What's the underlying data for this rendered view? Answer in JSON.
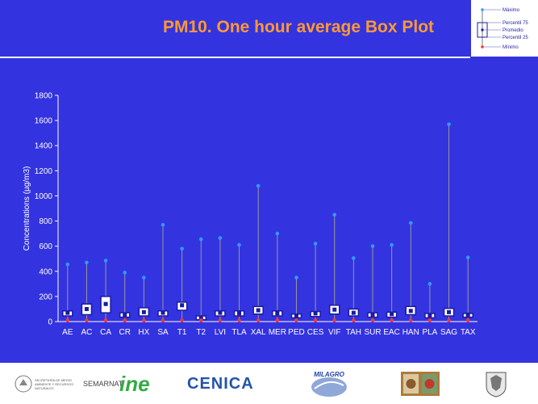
{
  "title": "PM10. One hour average Box Plot",
  "legend": {
    "max": "Máximo",
    "p75": "Percentil 75",
    "mean": "Promedio",
    "p25": "Percentil 25",
    "min": "Mínimo"
  },
  "footer": {
    "semarnat": "SEMARNAT",
    "semarnat_sub": "SECRETARÍA DE MEDIO AMBIENTE Y RECURSOS NATURALES",
    "ine": "ine",
    "cenica": "CENICA",
    "milagro": "MILAGRO"
  },
  "colors": {
    "background": "#3333e0",
    "title": "#ff9933",
    "box": "#1a1aa0",
    "max": "#3399ff",
    "min": "#ff3333",
    "whisker": "#999999"
  },
  "chart_data": {
    "type": "box",
    "ylabel": "Concentrations (µg/m3)",
    "ylim": [
      0,
      1800
    ],
    "yticks": [
      0,
      200,
      400,
      600,
      800,
      1000,
      1200,
      1400,
      1600,
      1800
    ],
    "categories": [
      "AE",
      "AC",
      "CA",
      "CR",
      "HX",
      "SA",
      "T1",
      "T2",
      "LVI",
      "TLA",
      "XAL",
      "MER",
      "PED",
      "CES",
      "VIF",
      "TAH",
      "SUR",
      "EAC",
      "HAN",
      "PLA",
      "SAG",
      "TAX"
    ],
    "max": [
      455,
      470,
      485,
      390,
      350,
      770,
      580,
      655,
      665,
      610,
      1080,
      700,
      350,
      620,
      850,
      505,
      600,
      610,
      785,
      300,
      1570,
      510
    ],
    "p75": [
      85,
      140,
      200,
      70,
      110,
      85,
      155,
      45,
      85,
      85,
      120,
      85,
      60,
      80,
      130,
      100,
      70,
      75,
      120,
      65,
      105,
      65
    ],
    "mean": [
      70,
      100,
      140,
      55,
      75,
      70,
      130,
      30,
      70,
      65,
      90,
      65,
      45,
      65,
      95,
      70,
      55,
      60,
      85,
      50,
      75,
      55
    ],
    "p25": [
      45,
      55,
      70,
      35,
      45,
      45,
      90,
      15,
      45,
      45,
      60,
      45,
      30,
      40,
      60,
      45,
      35,
      35,
      55,
      30,
      45,
      35
    ],
    "min": [
      10,
      10,
      10,
      10,
      10,
      10,
      10,
      10,
      10,
      10,
      10,
      10,
      10,
      10,
      10,
      10,
      10,
      10,
      10,
      10,
      10,
      10
    ]
  }
}
